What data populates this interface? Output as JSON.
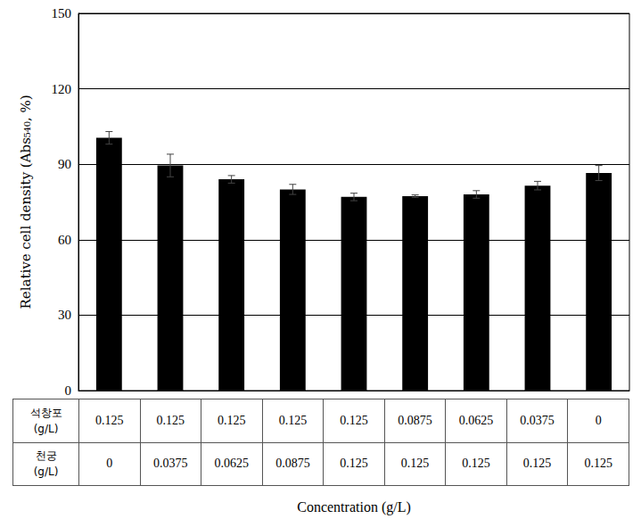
{
  "chart_data": {
    "type": "bar",
    "y_label": "Relative cell density (Abs₅₄₀, %)",
    "x_label": "Concentration (g/L)",
    "categories": [
      null,
      null,
      null,
      null,
      null,
      null,
      null,
      null,
      null
    ],
    "values": [
      100.5,
      89.5,
      84,
      80,
      77,
      77.3,
      78,
      81.5,
      86.5
    ],
    "errors": [
      2.5,
      4.5,
      1.5,
      2,
      1.5,
      0.5,
      1.5,
      1.7,
      3
    ],
    "color": "#000000",
    "ylim": [
      0,
      150
    ],
    "yticks": [
      0,
      30,
      60,
      90,
      120,
      150
    ],
    "grid": true,
    "tick_labels": "y",
    "table": {
      "rows": [
        {
          "label": [
            "석창포",
            "(g/L)"
          ],
          "values": [
            0.125,
            0.125,
            0.125,
            0.125,
            0.125,
            0.0875,
            0.0625,
            0.0375,
            0
          ]
        },
        {
          "label": [
            "천궁",
            "(g/L)"
          ],
          "values": [
            0,
            0.0375,
            0.0625,
            0.0875,
            0.125,
            0.125,
            0.125,
            0.125,
            0.125
          ]
        }
      ]
    }
  }
}
